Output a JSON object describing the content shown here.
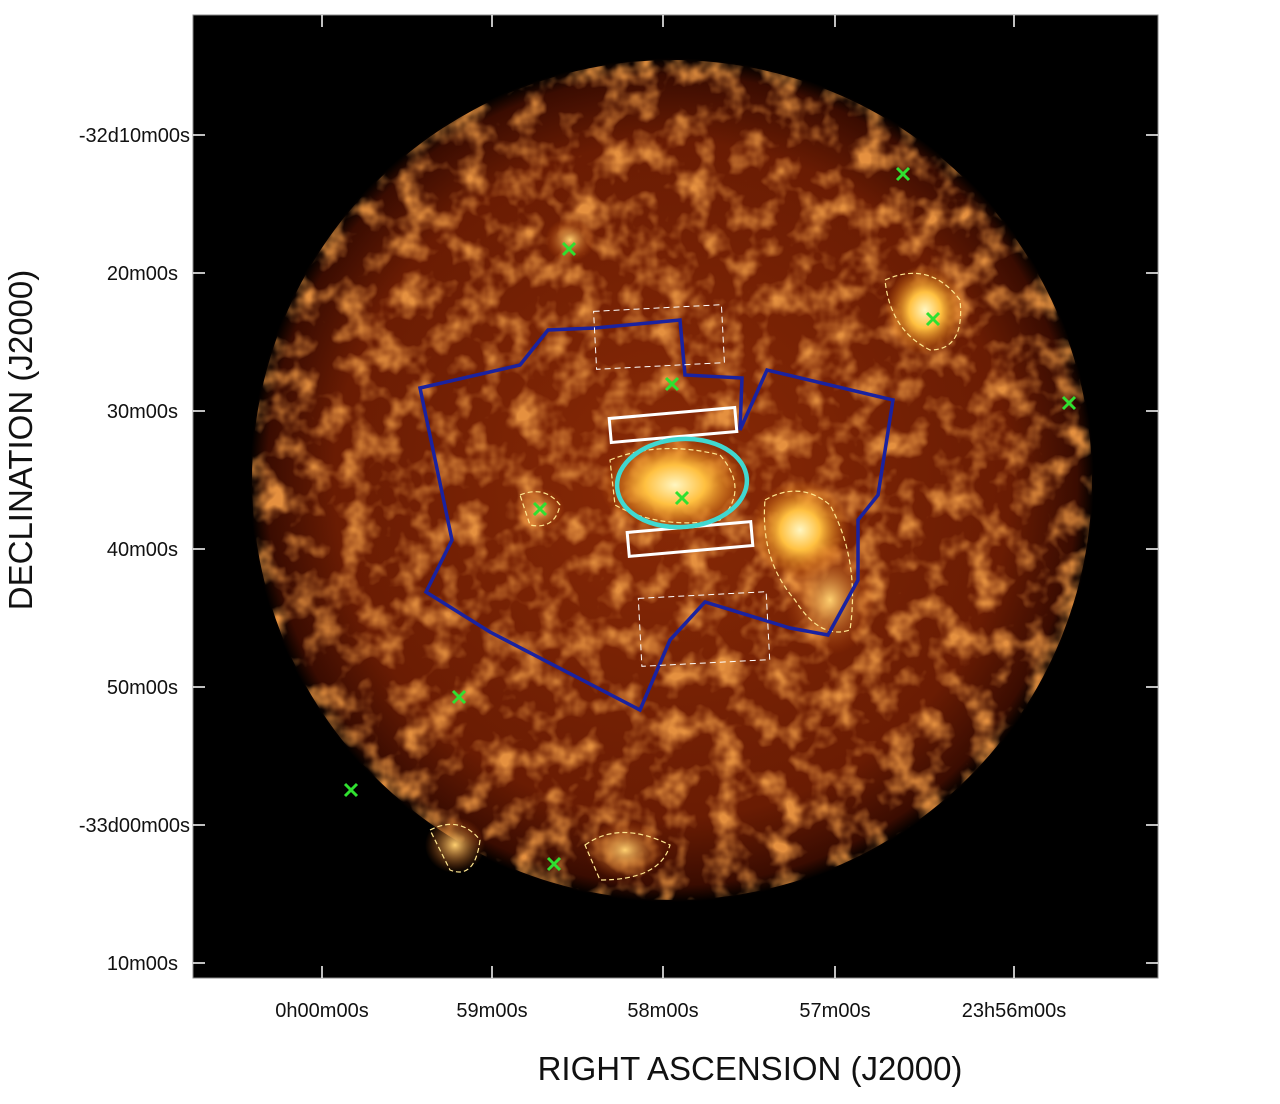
{
  "axes": {
    "y_label": "DECLINATION (J2000)",
    "x_label": "RIGHT ASCENSION (J2000)",
    "y_ticks": [
      "-32d10m00s",
      "20m00s",
      "30m00s",
      "40m00s",
      "50m00s",
      "-33d00m00s",
      "10m00s"
    ],
    "x_ticks": [
      "0h00m00s",
      "59m00s",
      "58m00s",
      "57m00s",
      "23h56m00s"
    ]
  }
}
